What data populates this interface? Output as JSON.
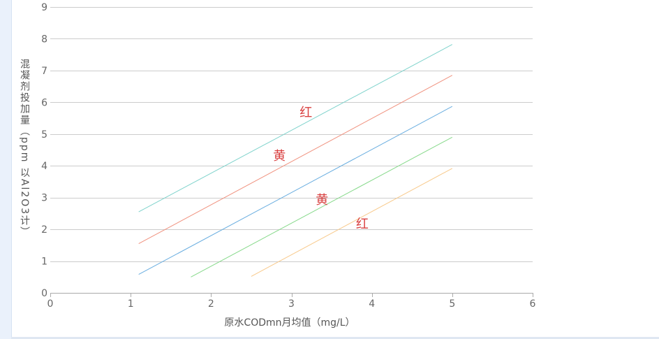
{
  "chart_data": {
    "type": "line",
    "title": "",
    "xlabel": "原水CODmn月均值（mg/L）",
    "ylabel": "混凝剂投加量（ppm 以Al2O3计）",
    "xlim": [
      0,
      6
    ],
    "ylim": [
      0,
      9
    ],
    "xticks": [
      0,
      1,
      2,
      3,
      4,
      5,
      6
    ],
    "yticks": [
      0,
      1,
      2,
      3,
      4,
      5,
      6,
      7,
      8,
      9
    ],
    "grid": "horizontal",
    "legend": "none",
    "series": [
      {
        "color": "#7fd3cc",
        "x": [
          1.1,
          5.0
        ],
        "y": [
          2.55,
          7.82
        ]
      },
      {
        "color": "#f0917e",
        "x": [
          1.1,
          5.0
        ],
        "y": [
          1.55,
          6.85
        ]
      },
      {
        "color": "#6aaee0",
        "x": [
          1.1,
          5.0
        ],
        "y": [
          0.58,
          5.87
        ]
      },
      {
        "color": "#86d98a",
        "x": [
          1.75,
          5.0
        ],
        "y": [
          0.5,
          4.9
        ]
      },
      {
        "color": "#f8c98a",
        "x": [
          2.5,
          5.0
        ],
        "y": [
          0.52,
          3.92
        ]
      }
    ],
    "annotations": [
      {
        "text": "红",
        "x": 3.18,
        "y": 5.55
      },
      {
        "text": "黄",
        "x": 2.85,
        "y": 4.18
      },
      {
        "text": "黄",
        "x": 3.38,
        "y": 2.8
      },
      {
        "text": "红",
        "x": 3.88,
        "y": 2.03
      }
    ]
  }
}
